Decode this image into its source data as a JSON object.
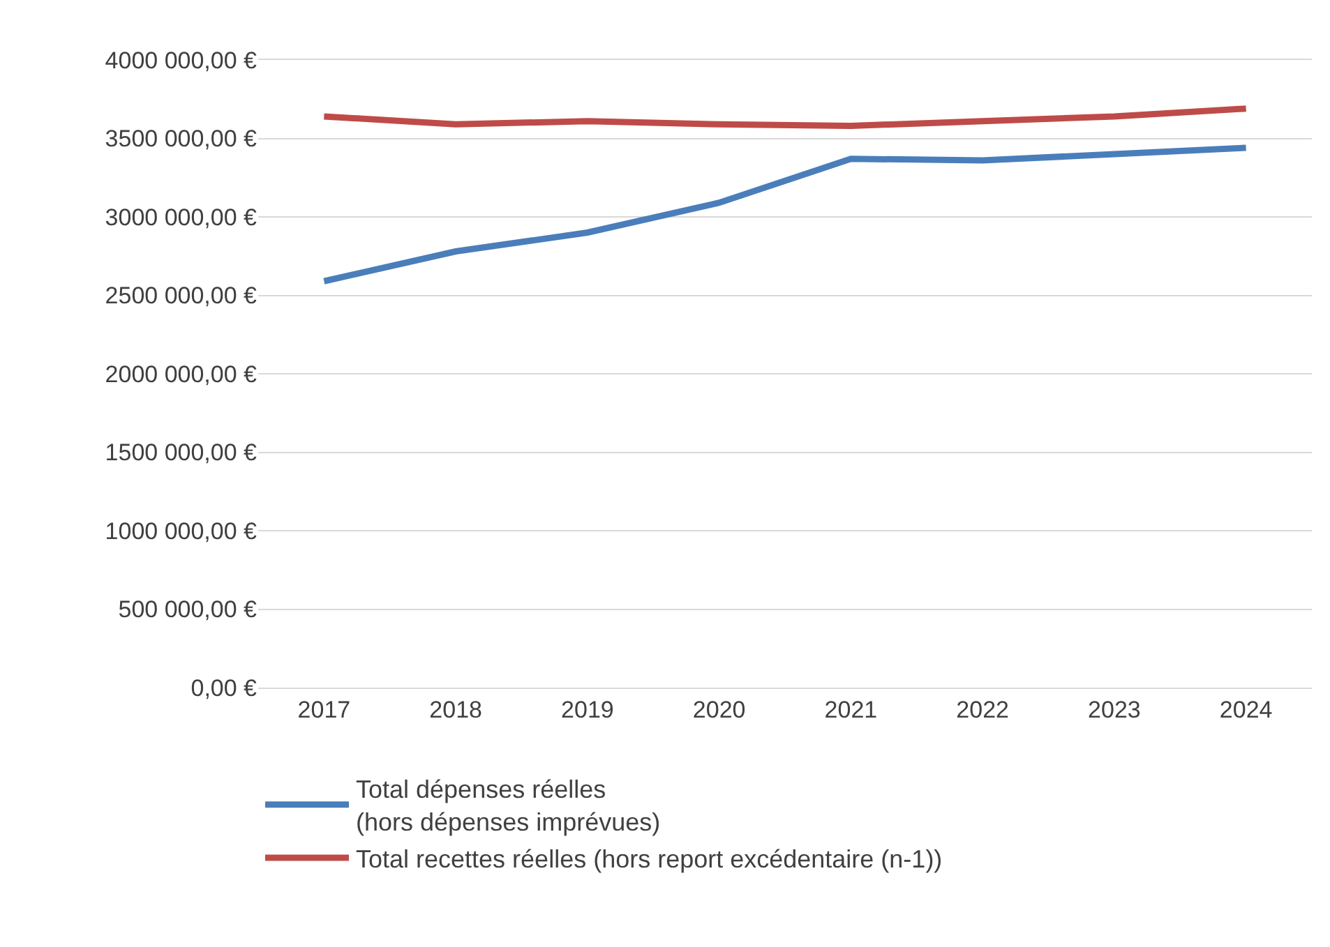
{
  "chart_data": {
    "type": "line",
    "categories": [
      "2017",
      "2018",
      "2019",
      "2020",
      "2021",
      "2022",
      "2023",
      "2024"
    ],
    "series": [
      {
        "name": "Total dépenses réelles\n(hors dépenses imprévues)",
        "color": "#4a7ebb",
        "values": [
          2590000,
          2780000,
          2900000,
          3090000,
          3370000,
          3360000,
          3400000,
          3440000
        ]
      },
      {
        "name": "Total recettes réelles (hors report excédentaire (n-1))",
        "color": "#be4b48",
        "values": [
          3640000,
          3590000,
          3610000,
          3590000,
          3580000,
          3610000,
          3640000,
          3690000
        ]
      }
    ],
    "ylim": [
      0,
      4000000
    ],
    "yticks": [
      {
        "value": 0,
        "label": "0,00 €"
      },
      {
        "value": 500000,
        "label": "500 000,00 €"
      },
      {
        "value": 1000000,
        "label": "1000 000,00 €"
      },
      {
        "value": 1500000,
        "label": "1500 000,00 €"
      },
      {
        "value": 2000000,
        "label": "2000 000,00 €"
      },
      {
        "value": 2500000,
        "label": "2500 000,00 €"
      },
      {
        "value": 3000000,
        "label": "3000 000,00 €"
      },
      {
        "value": 3500000,
        "label": "3500 000,00 €"
      },
      {
        "value": 4000000,
        "label": "4000 000,00 €"
      }
    ],
    "grid": "y",
    "legend": "bottom",
    "marker": "none",
    "line_style": "solid"
  }
}
